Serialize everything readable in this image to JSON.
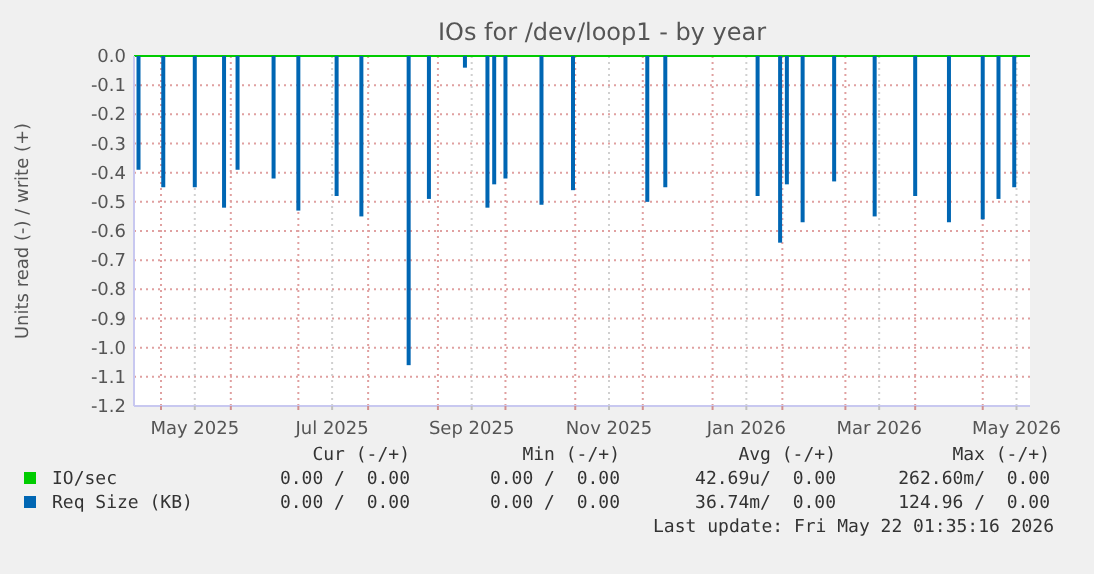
{
  "chart_data": {
    "type": "bar",
    "title": "IOs for /dev/loop1 - by year",
    "ylabel": "Units read (-) / write (+)",
    "xlim": [
      "2025-04-19",
      "2026-05-22"
    ],
    "ylim": [
      -1.2,
      0
    ],
    "xticks": [
      {
        "value": "2025-05-01",
        "label": null
      },
      {
        "value": "2025-05-16",
        "label": "May 2025"
      },
      {
        "value": "2025-06-01",
        "label": null
      },
      {
        "value": "2025-07-01",
        "label": null
      },
      {
        "value": "2025-07-16",
        "label": "Jul 2025"
      },
      {
        "value": "2025-08-01",
        "label": null
      },
      {
        "value": "2025-09-01",
        "label": null
      },
      {
        "value": "2025-09-16",
        "label": "Sep 2025"
      },
      {
        "value": "2025-10-01",
        "label": null
      },
      {
        "value": "2025-11-01",
        "label": null
      },
      {
        "value": "2025-11-16",
        "label": "Nov 2025"
      },
      {
        "value": "2025-12-01",
        "label": null
      },
      {
        "value": "2026-01-01",
        "label": null
      },
      {
        "value": "2026-01-16",
        "label": "Jan 2026"
      },
      {
        "value": "2026-02-01",
        "label": null
      },
      {
        "value": "2026-03-01",
        "label": null
      },
      {
        "value": "2026-03-16",
        "label": "Mar 2026"
      },
      {
        "value": "2026-04-01",
        "label": null
      },
      {
        "value": "2026-05-01",
        "label": null
      },
      {
        "value": "2026-05-16",
        "label": "May 2026"
      }
    ],
    "yticks": [
      {
        "value": 0,
        "label": "0.0"
      },
      -0.1,
      -0.2,
      -0.3,
      -0.4,
      -0.5,
      -0.6,
      -0.7,
      -0.8,
      -0.9,
      {
        "value": -1,
        "label": "-1.0"
      },
      -1.1,
      -1.2
    ],
    "grid": true,
    "legend": "bottom",
    "series": [
      {
        "name": "IO/sec",
        "type": "line",
        "color": "#00cc00",
        "x": [
          "2025-04-19",
          "2026-05-22"
        ],
        "values": [
          0,
          0
        ]
      },
      {
        "name": "Req Size (KB)",
        "color": "#0066b3",
        "x": [
          "2025-04-21",
          "2025-05-02",
          "2025-05-16",
          "2025-05-29",
          "2025-06-04",
          "2025-06-20",
          "2025-07-01",
          "2025-07-18",
          "2025-07-29",
          "2025-08-19",
          "2025-08-28",
          "2025-09-13",
          "2025-09-23",
          "2025-09-26",
          "2025-10-01",
          "2025-10-17",
          "2025-10-31",
          "2025-12-03",
          "2025-12-11",
          "2026-01-21",
          "2026-01-31",
          "2026-02-03",
          "2026-02-10",
          "2026-02-24",
          "2026-03-14",
          "2026-04-01",
          "2026-04-16",
          "2026-05-01",
          "2026-05-08",
          "2026-05-15"
        ],
        "values": [
          -0.39,
          -0.45,
          -0.45,
          -0.52,
          -0.39,
          -0.42,
          -0.53,
          -0.48,
          -0.55,
          -1.06,
          -0.49,
          -0.04,
          -0.52,
          -0.44,
          -0.42,
          -0.51,
          -0.46,
          -0.5,
          -0.45,
          -0.48,
          -0.64,
          -0.44,
          -0.57,
          -0.43,
          -0.55,
          -0.48,
          -0.57,
          -0.56,
          -0.49,
          -0.45
        ]
      }
    ],
    "annotations": [
      "Cur (-/+)",
      "Min (-/+)",
      "Avg (-/+)",
      "Max (-/+)",
      "0.00 /  0.00",
      "0.00 /  0.00",
      "42.69u/  0.00",
      "262.60m/  0.00",
      "0.00 /  0.00",
      "0.00 /  0.00",
      "36.74m/  0.00",
      "124.96 /  0.00",
      "Last update: Fri May 22 01:35:16 2026"
    ]
  }
}
